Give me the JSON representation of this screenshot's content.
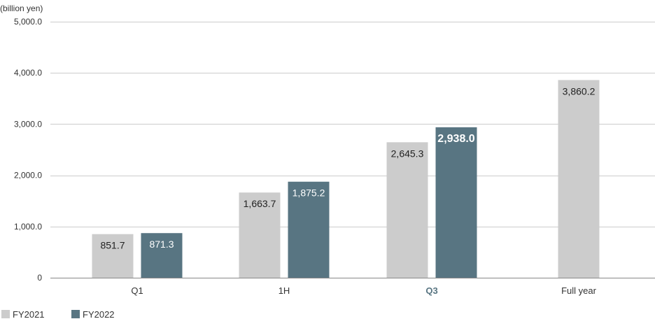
{
  "chart_data": {
    "type": "bar",
    "unit_label": "(billion yen)",
    "categories": [
      "Q1",
      "1H",
      "Q3",
      "Full year"
    ],
    "highlight_category": "Q3",
    "series": [
      {
        "name": "FY2021",
        "color": "#cccccc",
        "values": [
          851.7,
          1663.7,
          2645.3,
          3860.2
        ],
        "labels": [
          "851.7",
          "1,663.7",
          "2,645.3",
          "3,860.2"
        ]
      },
      {
        "name": "FY2022",
        "color": "#587582",
        "values": [
          871.3,
          1875.2,
          2938.0,
          null
        ],
        "labels": [
          "871.3",
          "1,875.2",
          "2,938.0",
          ""
        ]
      }
    ],
    "y_ticks": [
      0,
      1000,
      2000,
      3000,
      4000,
      5000
    ],
    "y_tick_labels": [
      "0",
      "1,000.0",
      "2,000.0",
      "3,000.0",
      "4,000.0",
      "5,000.0"
    ],
    "ylim": [
      0,
      5000
    ],
    "grid": true,
    "legend_position": "bottom-left",
    "colors": {
      "axis_text": "#333333",
      "highlight_text": "#587582",
      "grid": "#cccccc"
    }
  }
}
